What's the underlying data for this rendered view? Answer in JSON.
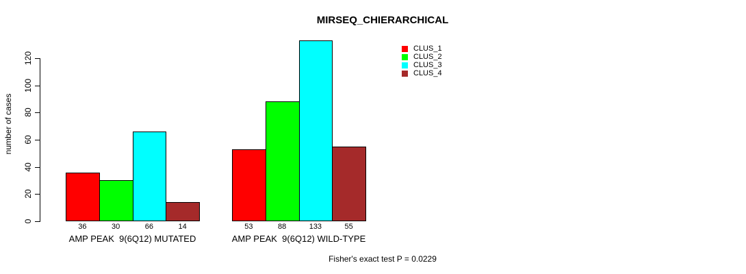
{
  "chart_data": {
    "type": "bar",
    "title": "MIRSEQ_CHIERARCHICAL",
    "ylabel": "number of cases",
    "xlabel": "",
    "categories": [
      "AMP PEAK  9(6Q12) MUTATED",
      "AMP PEAK  9(6Q12) WILD-TYPE"
    ],
    "series": [
      {
        "name": "CLUS_1",
        "color": "#FF0000",
        "values": [
          36,
          53
        ]
      },
      {
        "name": "CLUS_2",
        "color": "#00FF00",
        "values": [
          30,
          88
        ]
      },
      {
        "name": "CLUS_3",
        "color": "#00FFFF",
        "values": [
          66,
          133
        ]
      },
      {
        "name": "CLUS_4",
        "color": "#A52A2A",
        "values": [
          14,
          55
        ]
      }
    ],
    "bar_values_mutated": [
      36,
      30,
      66,
      14
    ],
    "bar_values_wild_type": [
      53,
      88,
      133,
      55
    ],
    "yticks": [
      0,
      20,
      40,
      60,
      80,
      100,
      120
    ],
    "ylim": [
      0,
      140
    ],
    "grid": false,
    "legend_position": "top-right",
    "legend_entries": [
      "CLUS_1",
      "CLUS_2",
      "CLUS_3",
      "CLUS_4"
    ],
    "annotation": "Fisher's exact test P = 0.0229",
    "bar_border_color": "#000000",
    "axis_color": "#000000",
    "background_color": "#FFFFFF"
  }
}
